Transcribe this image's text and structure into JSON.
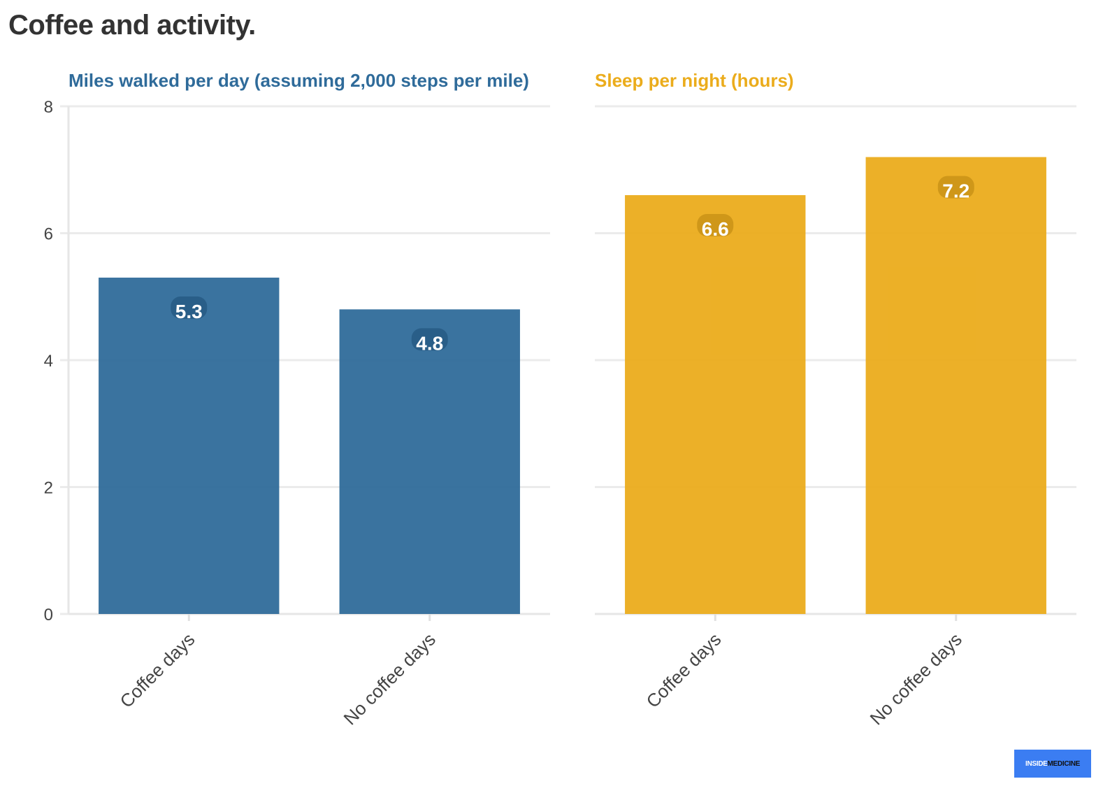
{
  "title": "Coffee and activity.",
  "logo": {
    "part1": "INSIDE",
    "part2": "MEDICINE"
  },
  "chart_data": [
    {
      "type": "bar",
      "title": "Miles walked per day (assuming 2,000 steps per mile)",
      "categories": [
        "Coffee days",
        "No coffee days"
      ],
      "values": [
        5.3,
        4.8
      ],
      "value_labels": [
        "5.3",
        "4.8"
      ],
      "color": "#2f6b9a",
      "ylim": [
        0,
        8
      ],
      "yticks": [
        0,
        2,
        4,
        6,
        8
      ],
      "ytick_labels": [
        "0",
        "2",
        "4",
        "6",
        "8"
      ],
      "grid": true,
      "show_y_tick_labels": true
    },
    {
      "type": "bar",
      "title": "Sleep per night (hours)",
      "categories": [
        "Coffee days",
        "No coffee days"
      ],
      "values": [
        6.6,
        7.2
      ],
      "value_labels": [
        "6.6",
        "7.2"
      ],
      "color": "#ebac1c",
      "ylim": [
        0,
        8
      ],
      "yticks": [
        0,
        2,
        4,
        6,
        8
      ],
      "grid": true,
      "show_y_tick_labels": false
    }
  ]
}
